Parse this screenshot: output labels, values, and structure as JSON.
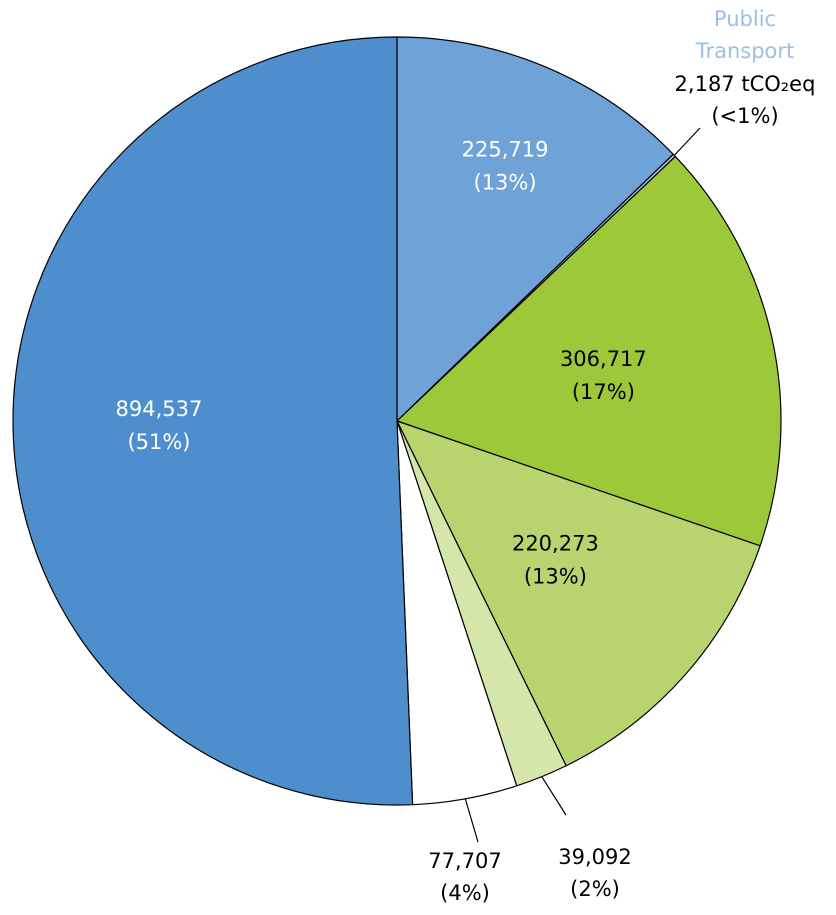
{
  "chart_data": {
    "type": "pie",
    "labels": [
      null,
      "Public Transport",
      null,
      null,
      null,
      null,
      null
    ],
    "values": [
      225719,
      2187,
      306717,
      220273,
      39092,
      77707,
      894537
    ],
    "value_labels": [
      "225,719",
      "2,187 tCO₂eq",
      "306,717",
      "220,273",
      "39,092",
      "77,707",
      "894,537"
    ],
    "percent_labels": [
      "(13%)",
      "(<1%)",
      "(17%)",
      "(13%)",
      "(2%)",
      "(4%)",
      "(51%)"
    ],
    "colors": [
      "#6fa2d7",
      "#a9c6e8",
      "#9cc83a",
      "#b8d46f",
      "#d4e6a9",
      "#ffffff",
      "#4f8ecd"
    ]
  }
}
